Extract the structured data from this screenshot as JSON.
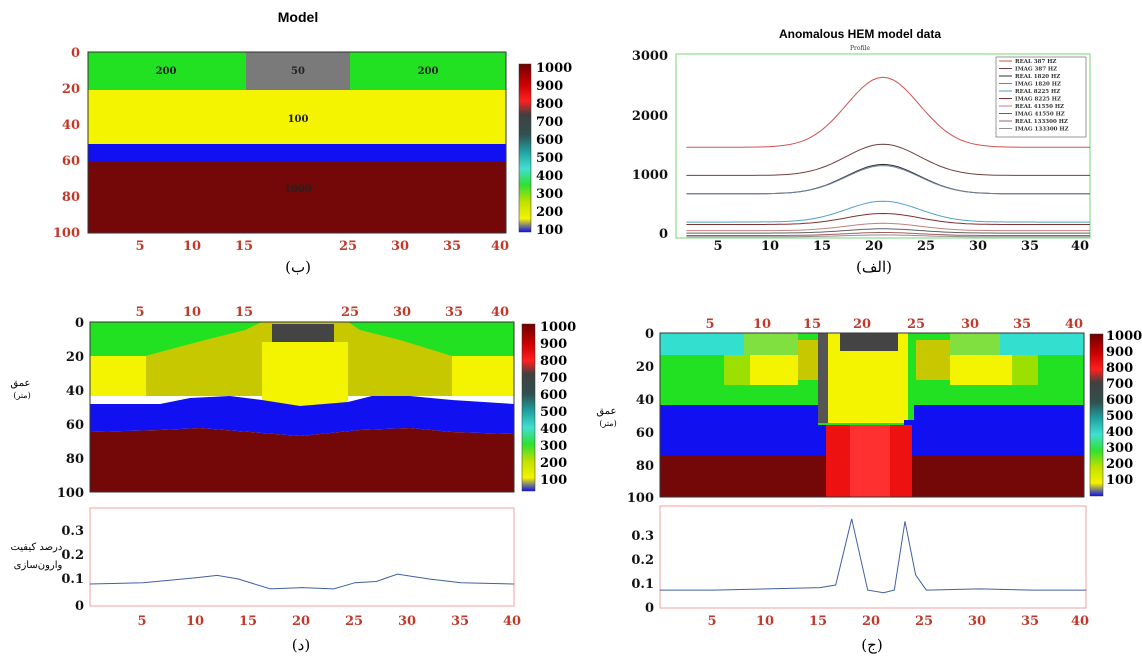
{
  "colors": {
    "green": "#22e022",
    "yellow": "#f4f400",
    "blue": "#1010f0",
    "darkred": "#740808",
    "gray": "#7a7a7a",
    "olive": "#c8c800",
    "cyan": "#33e0d0",
    "lightgreen": "#9be000",
    "red": "#ee1111",
    "dark": "#3a3a3a",
    "tick_red": "#c0392b"
  },
  "panel_b": {
    "title": "Model",
    "caption": "(ب)",
    "y_ticks": [
      "0",
      "20",
      "40",
      "60",
      "80",
      "100"
    ],
    "x_ticks": [
      "5",
      "10",
      "15",
      "25",
      "30",
      "35",
      "40"
    ],
    "cell_labels": [
      "200",
      "50",
      "200",
      "100",
      "1000"
    ]
  },
  "panel_alef": {
    "caption": "(الف)",
    "chart_data": {
      "type": "line",
      "title": "Anomalous HEM model data",
      "subtitle": "Profile",
      "ylim": [
        0,
        3000
      ],
      "xlim": [
        0,
        40
      ],
      "y_ticks": [
        "3000",
        "2000",
        "1000",
        "0"
      ],
      "x_ticks": [
        "5",
        "10",
        "15",
        "20",
        "25",
        "30",
        "35",
        "40"
      ],
      "legend_position": "top-right",
      "series": [
        {
          "name": "REAL 387 HZ",
          "color": "#d05050",
          "base": 1480,
          "peak": 2620
        },
        {
          "name": "IMAG 387 HZ",
          "color": "#704040",
          "base": 1020,
          "peak": 1530
        },
        {
          "name": "REAL 1820 HZ",
          "color": "#303030",
          "base": 720,
          "peak": 1200
        },
        {
          "name": "IMAG 1820 HZ",
          "color": "#7080a0",
          "base": 720,
          "peak": 1180
        },
        {
          "name": "REAL 8225 HZ",
          "color": "#50a0c8",
          "base": 260,
          "peak": 600
        },
        {
          "name": "IMAG 8225 HZ",
          "color": "#803030",
          "base": 220,
          "peak": 400
        },
        {
          "name": "REAL 41550 HZ",
          "color": "#c08080",
          "base": 120,
          "peak": 240
        },
        {
          "name": "IMAG 41550 HZ",
          "color": "#606060",
          "base": 80,
          "peak": 150
        },
        {
          "name": "REAL 133300 HZ",
          "color": "#a06060",
          "base": 40,
          "peak": 90
        },
        {
          "name": "IMAG 133300 HZ",
          "color": "#909090",
          "base": 20,
          "peak": 50
        }
      ]
    }
  },
  "panel_d": {
    "caption": "(د)",
    "ylabel": "عمق\n(متر)",
    "y_ticks": [
      "0",
      "20",
      "40",
      "60",
      "80",
      "100"
    ],
    "x_ticks_top": [
      "5",
      "10",
      "15",
      "25",
      "30",
      "35",
      "40"
    ],
    "colorbar_ticks": [
      "1000",
      "900",
      "800",
      "700",
      "600",
      "500",
      "400",
      "300",
      "200",
      "100"
    ],
    "quality": {
      "ylabel": "درصد کیفیت\nوارون‌سازی",
      "y_ticks": [
        "0.3",
        "0.2",
        "0.1",
        "0"
      ],
      "x_ticks": [
        "5",
        "10",
        "15",
        "20",
        "25",
        "30",
        "35",
        "40"
      ],
      "x": [
        0,
        5,
        10,
        12,
        14,
        17,
        20,
        23,
        25,
        27,
        29,
        32,
        35,
        40
      ],
      "y": [
        0.09,
        0.095,
        0.115,
        0.125,
        0.11,
        0.07,
        0.075,
        0.07,
        0.095,
        0.1,
        0.13,
        0.11,
        0.095,
        0.09
      ]
    }
  },
  "panel_j": {
    "caption": "(ج)",
    "ylabel": "عمق\n(متر)",
    "y_ticks": [
      "0",
      "20",
      "40",
      "60",
      "80",
      "100"
    ],
    "x_ticks_top": [
      "5",
      "10",
      "15",
      "20",
      "25",
      "30",
      "35",
      "40"
    ],
    "colorbar_ticks": [
      "1000",
      "900",
      "800",
      "700",
      "600",
      "500",
      "400",
      "300",
      "200",
      "100"
    ],
    "quality": {
      "y_ticks": [
        "0.3",
        "0.2",
        "0.1",
        "0"
      ],
      "x_ticks": [
        "5",
        "10",
        "15",
        "20",
        "25",
        "30",
        "35",
        "40"
      ],
      "x": [
        0,
        5,
        10,
        15,
        16.5,
        18,
        19.5,
        21,
        22,
        23,
        24,
        25,
        30,
        35,
        40
      ],
      "y": [
        0.07,
        0.07,
        0.075,
        0.08,
        0.09,
        0.35,
        0.07,
        0.06,
        0.07,
        0.34,
        0.13,
        0.07,
        0.075,
        0.07,
        0.07
      ]
    }
  }
}
